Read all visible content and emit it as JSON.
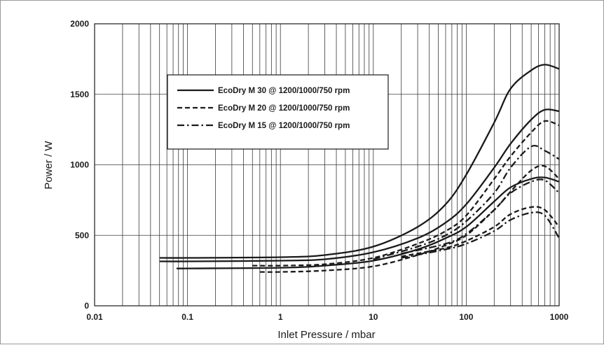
{
  "chart_data": {
    "type": "line",
    "title": "",
    "xlabel": "Inlet Pressure / mbar",
    "ylabel": "Power / W",
    "x_scale": "log",
    "xlim": [
      0.01,
      1000
    ],
    "ylim": [
      0,
      2000
    ],
    "x_ticks": [
      "0.01",
      "0.1",
      "1",
      "10",
      "100",
      "1000"
    ],
    "y_ticks": [
      "0",
      "500",
      "1000",
      "1500",
      "2000"
    ],
    "grid": true,
    "legend_position": "top-left",
    "legend": [
      {
        "label": "EcoDry M 30 @ 1200/1000/750 rpm",
        "style": "solid"
      },
      {
        "label": "EcoDry M 20 @ 1200/1000/750 rpm",
        "style": "dashed"
      },
      {
        "label": "EcoDry M 15 @ 1200/1000/750 rpm",
        "style": "dashdot"
      }
    ],
    "series": [
      {
        "style": "solid",
        "points": [
          [
            0.05,
            340
          ],
          [
            0.1,
            340
          ],
          [
            1,
            345
          ],
          [
            3,
            360
          ],
          [
            10,
            420
          ],
          [
            30,
            560
          ],
          [
            60,
            720
          ],
          [
            100,
            930
          ],
          [
            200,
            1300
          ],
          [
            300,
            1540
          ],
          [
            500,
            1670
          ],
          [
            700,
            1710
          ],
          [
            1000,
            1680
          ]
        ]
      },
      {
        "style": "solid",
        "points": [
          [
            0.05,
            315
          ],
          [
            0.1,
            315
          ],
          [
            1,
            320
          ],
          [
            3,
            330
          ],
          [
            10,
            380
          ],
          [
            30,
            480
          ],
          [
            60,
            590
          ],
          [
            100,
            720
          ],
          [
            200,
            980
          ],
          [
            300,
            1150
          ],
          [
            500,
            1320
          ],
          [
            700,
            1390
          ],
          [
            1000,
            1380
          ]
        ]
      },
      {
        "style": "solid",
        "points": [
          [
            0.08,
            265
          ],
          [
            0.1,
            265
          ],
          [
            1,
            270
          ],
          [
            3,
            285
          ],
          [
            10,
            320
          ],
          [
            30,
            400
          ],
          [
            60,
            480
          ],
          [
            100,
            560
          ],
          [
            200,
            740
          ],
          [
            300,
            840
          ],
          [
            500,
            900
          ],
          [
            700,
            910
          ],
          [
            1000,
            880
          ]
        ]
      },
      {
        "style": "dashed",
        "points": [
          [
            0.5,
            285
          ],
          [
            1,
            285
          ],
          [
            3,
            295
          ],
          [
            10,
            340
          ],
          [
            30,
            440
          ],
          [
            60,
            530
          ],
          [
            100,
            640
          ],
          [
            200,
            900
          ],
          [
            300,
            1060
          ],
          [
            500,
            1230
          ],
          [
            700,
            1310
          ],
          [
            1000,
            1280
          ]
        ]
      },
      {
        "style": "dashed",
        "points": [
          [
            0.6,
            240
          ],
          [
            1,
            240
          ],
          [
            3,
            250
          ],
          [
            10,
            280
          ],
          [
            30,
            360
          ],
          [
            60,
            430
          ],
          [
            100,
            500
          ],
          [
            200,
            680
          ],
          [
            300,
            810
          ],
          [
            500,
            960
          ],
          [
            700,
            990
          ],
          [
            1000,
            900
          ]
        ]
      },
      {
        "style": "dashed",
        "points": [
          [
            20,
            350
          ],
          [
            60,
            410
          ],
          [
            100,
            460
          ],
          [
            200,
            560
          ],
          [
            300,
            650
          ],
          [
            500,
            700
          ],
          [
            700,
            680
          ],
          [
            1000,
            560
          ]
        ]
      },
      {
        "style": "dashdot",
        "points": [
          [
            10,
            330
          ],
          [
            30,
            420
          ],
          [
            60,
            500
          ],
          [
            100,
            600
          ],
          [
            200,
            800
          ],
          [
            300,
            980
          ],
          [
            500,
            1130
          ],
          [
            700,
            1100
          ],
          [
            1000,
            1040
          ]
        ]
      },
      {
        "style": "dashdot",
        "points": [
          [
            20,
            370
          ],
          [
            60,
            440
          ],
          [
            100,
            510
          ],
          [
            200,
            680
          ],
          [
            300,
            800
          ],
          [
            500,
            880
          ],
          [
            700,
            890
          ],
          [
            1000,
            800
          ]
        ]
      },
      {
        "style": "dashdot",
        "points": [
          [
            20,
            340
          ],
          [
            60,
            400
          ],
          [
            100,
            440
          ],
          [
            200,
            530
          ],
          [
            300,
            610
          ],
          [
            500,
            660
          ],
          [
            700,
            640
          ],
          [
            1000,
            480
          ]
        ]
      }
    ]
  }
}
